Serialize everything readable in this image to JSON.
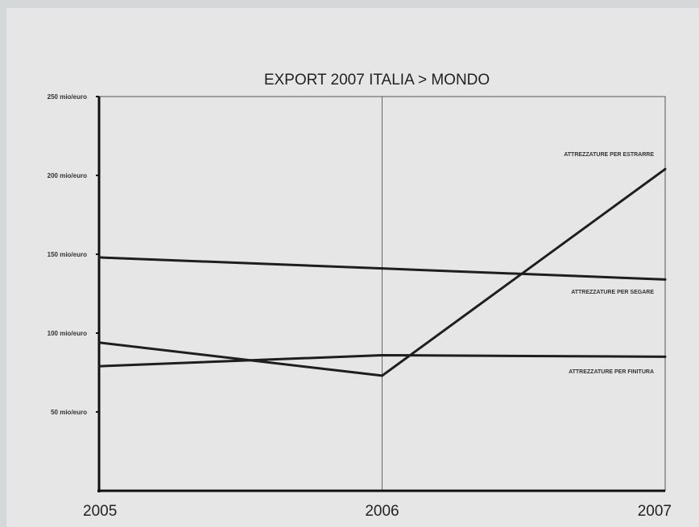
{
  "chart_data": {
    "type": "line",
    "title": "EXPORT 2007 ITALIA > MONDO",
    "xlabel": "",
    "ylabel": "",
    "x": [
      "2005",
      "2006",
      "2007"
    ],
    "ylim": [
      0,
      250
    ],
    "yticks": [
      {
        "value": 250,
        "label": "250 mio/euro"
      },
      {
        "value": 200,
        "label": "200 mio/euro"
      },
      {
        "value": 150,
        "label": "150 mio/euro"
      },
      {
        "value": 100,
        "label": "100 mio/euro"
      },
      {
        "value": 50,
        "label": "50 mio/euro"
      }
    ],
    "series": [
      {
        "name": "ATTREZZATURE PER ESTRARRE",
        "values": [
          94,
          73,
          204
        ]
      },
      {
        "name": "ATTREZZATURE PER SEGARE",
        "values": [
          148,
          141,
          134
        ]
      },
      {
        "name": "ATTREZZATURE PER FINITURA",
        "values": [
          79,
          86,
          85
        ]
      }
    ],
    "grid": false,
    "vertical_reference_at": "2006",
    "line_color": "#1e1e1e"
  }
}
